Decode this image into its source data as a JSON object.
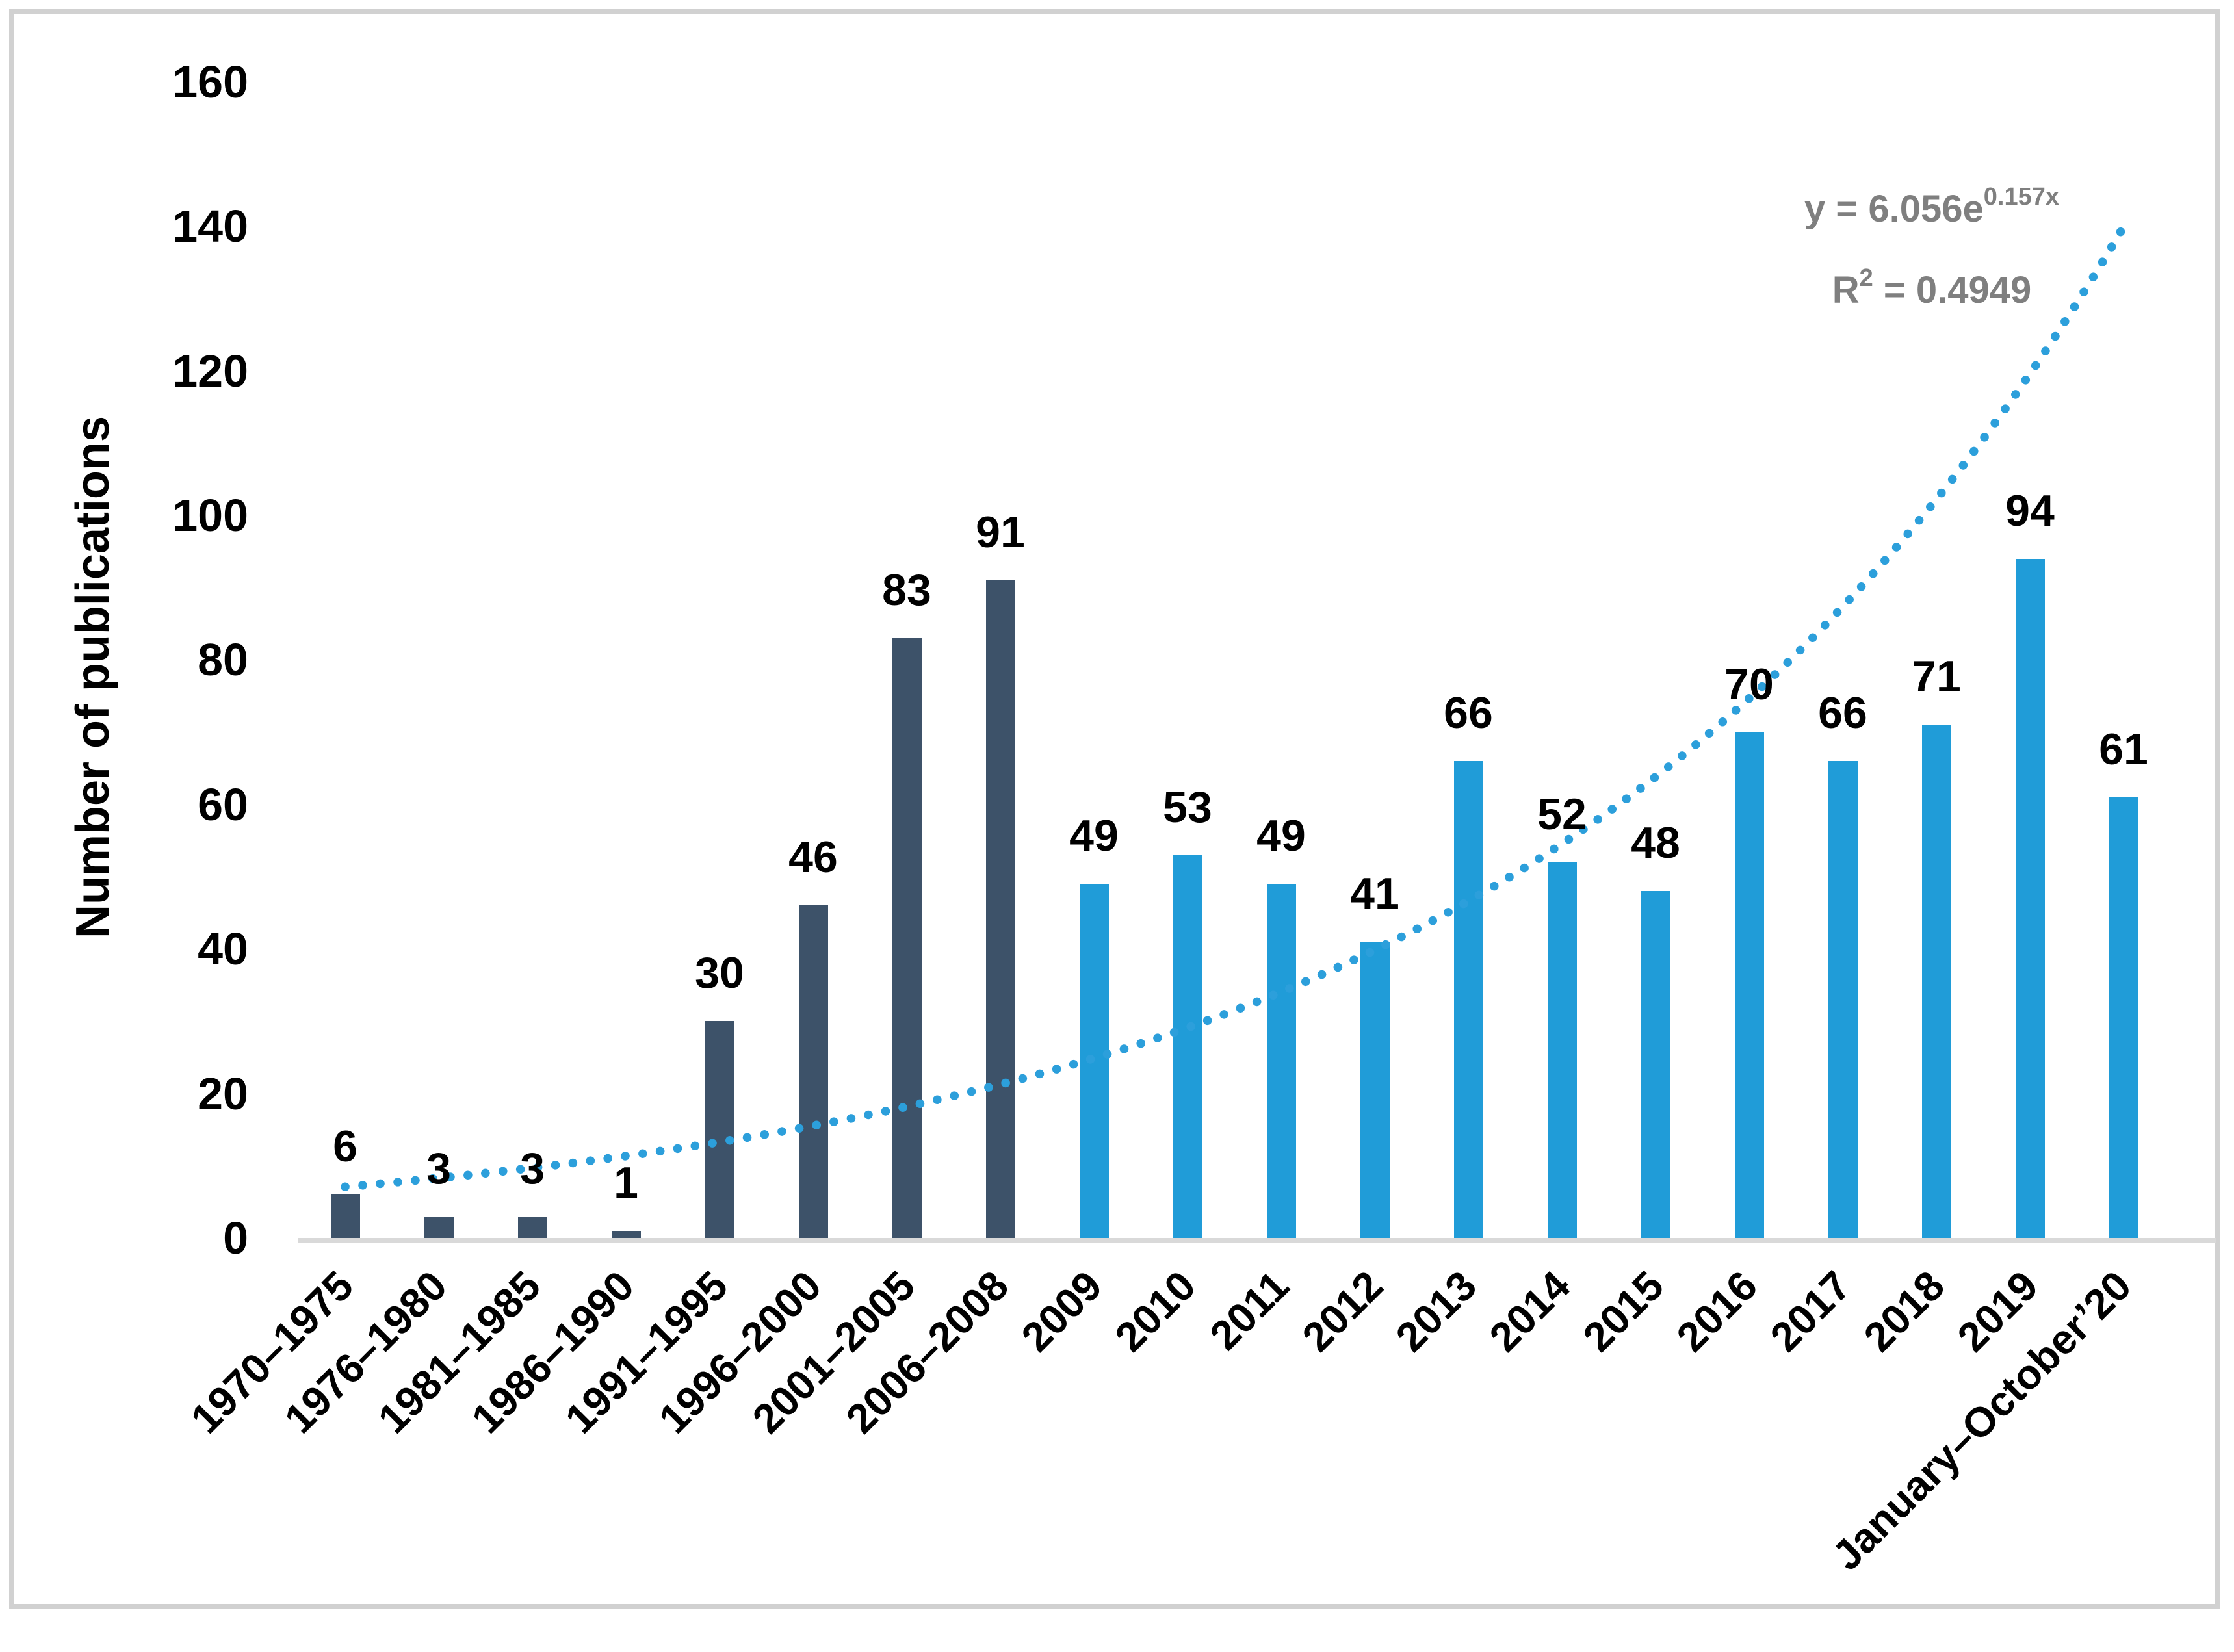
{
  "chart_data": {
    "type": "bar",
    "title": "",
    "xlabel": "",
    "ylabel": "Number of publications",
    "categories": [
      "1970–1975",
      "1976–1980",
      "1981–1985",
      "1986–1990",
      "1991–1995",
      "1996–2000",
      "2001–2005",
      "2006–2008",
      "2009",
      "2010",
      "2011",
      "2012",
      "2013",
      "2014",
      "2015",
      "2016",
      "2017",
      "2018",
      "2019",
      "January–October’20"
    ],
    "values": [
      6,
      3,
      3,
      1,
      30,
      46,
      83,
      91,
      49,
      53,
      49,
      41,
      66,
      52,
      48,
      70,
      66,
      71,
      94,
      61
    ],
    "dark_bar_count": 8,
    "bar_colors": {
      "period_1970_2008": "#3d5269",
      "period_2009_2020": "#209cd8"
    },
    "ylim": [
      0,
      160
    ],
    "yticks": [
      0,
      20,
      40,
      60,
      80,
      100,
      120,
      140,
      160
    ],
    "grid": false,
    "legend": false,
    "trendline": {
      "type": "exponential",
      "a": 6.056,
      "b": 0.157,
      "color": "#2c9fdb",
      "text_color": "#7f7f7f",
      "equation": {
        "base": "y = 6.056e",
        "exponent": "0.157x"
      },
      "r_squared": {
        "base": "R",
        "sup": "2",
        "rest": " = 0.4949"
      }
    }
  }
}
